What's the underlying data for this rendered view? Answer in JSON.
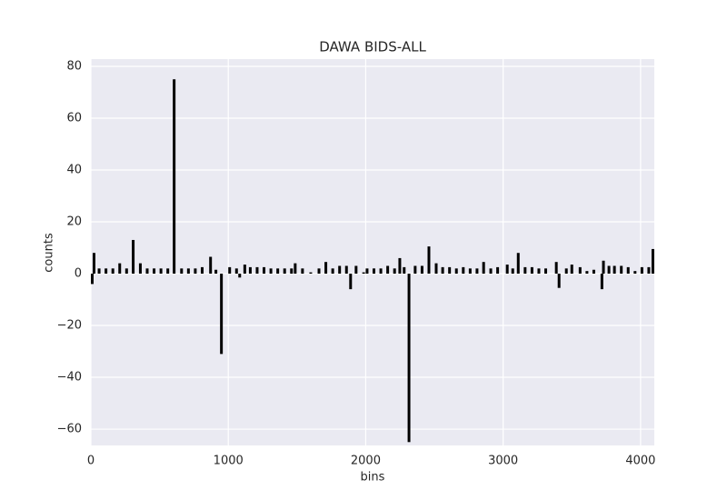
{
  "chart_data": {
    "type": "bar",
    "title": "DAWA BIDS-ALL",
    "x_label": "bins",
    "y_label": "counts",
    "x": [
      0,
      13,
      50,
      100,
      150,
      200,
      250,
      298,
      350,
      400,
      450,
      500,
      550,
      596,
      650,
      700,
      750,
      800,
      861,
      900,
      940,
      1000,
      1050,
      1073,
      1110,
      1150,
      1200,
      1250,
      1300,
      1350,
      1400,
      1450,
      1477,
      1530,
      1590,
      1650,
      1700,
      1750,
      1800,
      1850,
      1880,
      1920,
      1975,
      2000,
      2050,
      2100,
      2150,
      2200,
      2238,
      2270,
      2305,
      2350,
      2400,
      2450,
      2503,
      2550,
      2600,
      2650,
      2700,
      2750,
      2800,
      2848,
      2900,
      2950,
      3020,
      3060,
      3100,
      3150,
      3200,
      3250,
      3300,
      3377,
      3397,
      3450,
      3490,
      3550,
      3600,
      3650,
      3709,
      3720,
      3760,
      3800,
      3850,
      3900,
      3950,
      4000,
      4050,
      4080
    ],
    "values": [
      -4,
      8,
      2,
      2,
      2,
      4,
      2,
      13,
      4,
      2,
      2,
      2,
      2,
      75,
      2,
      2,
      2,
      2.5,
      6.5,
      1.5,
      -31,
      2.5,
      2,
      -1.5,
      3.5,
      2.5,
      2.5,
      2.5,
      2,
      2,
      2,
      2,
      4,
      2,
      0.5,
      2,
      4.5,
      2,
      3,
      3,
      -6,
      3,
      0.5,
      2,
      2,
      2,
      3,
      2,
      6,
      2.5,
      -65,
      3,
      3,
      10.5,
      4,
      2.5,
      2.5,
      2,
      2.5,
      2,
      2,
      4.5,
      2,
      2.5,
      3.5,
      2,
      8,
      2.5,
      2.5,
      2,
      2,
      4.5,
      -5.5,
      2,
      3.5,
      2.5,
      1,
      1.5,
      -6,
      5,
      3,
      3,
      3,
      2.5,
      1,
      2.5,
      2.5,
      9.5
    ],
    "color": "#000000",
    "xlim": [
      0,
      4100
    ],
    "xticks": [
      0,
      1000,
      2000,
      3000,
      4000
    ],
    "ylim": [
      -66.3,
      82.8
    ],
    "yticks": [
      {
        "value": -60,
        "label": "−60"
      },
      {
        "value": -40,
        "label": "−40"
      },
      {
        "value": -20,
        "label": "−20"
      },
      0,
      20,
      40,
      60,
      80
    ],
    "grid": true
  }
}
